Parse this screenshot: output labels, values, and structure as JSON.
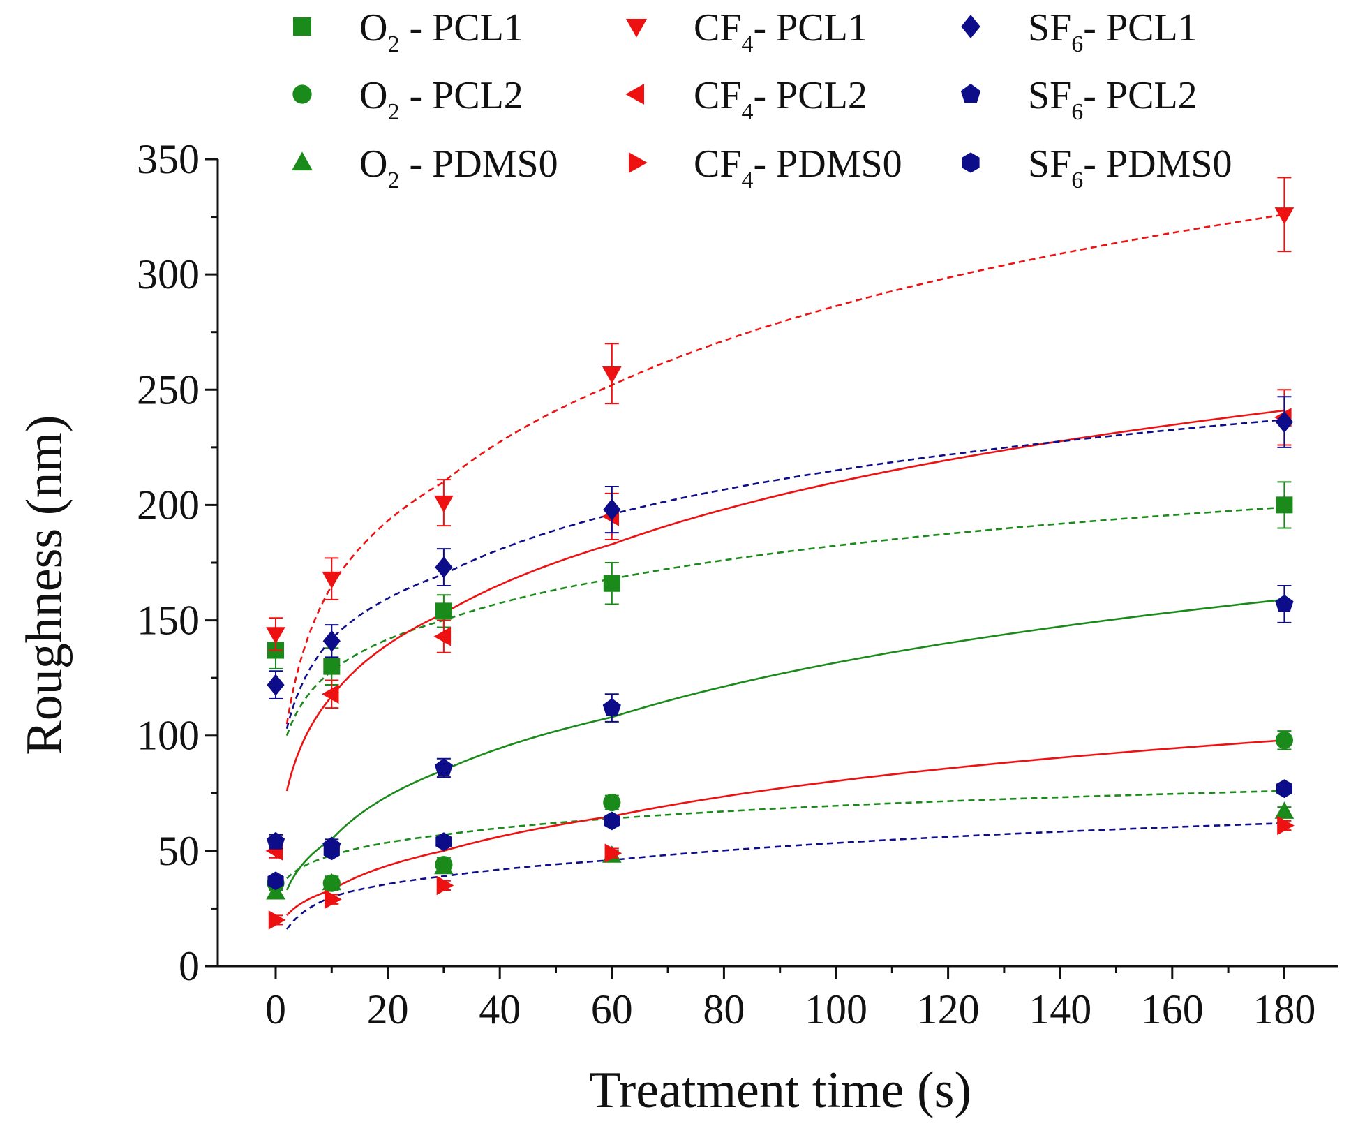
{
  "chart_data": {
    "type": "scatter",
    "title": "",
    "xlabel": "Treatment time (s)",
    "ylabel": "Roughness (nm)",
    "xlim": [
      -10,
      190
    ],
    "ylim": [
      0,
      350
    ],
    "xticks": [
      0,
      20,
      40,
      60,
      80,
      100,
      120,
      140,
      160,
      180
    ],
    "yticks": [
      0,
      50,
      100,
      150,
      200,
      250,
      300,
      350
    ],
    "legend_position": "top",
    "colors": {
      "O2": "#1a8a1a",
      "CF4": "#ee1111",
      "SF6": "#0d0d8a"
    },
    "series": [
      {
        "gas": "O",
        "sub": "2",
        "sample": "PCL1",
        "label": "O2 - PCL1",
        "color": "#1a8a1a",
        "marker": "square",
        "fit": "dashed",
        "x": [
          0,
          10,
          30,
          60,
          180
        ],
        "y": [
          137,
          130,
          154,
          166,
          200
        ],
        "err": [
          8,
          8,
          7,
          9,
          10
        ],
        "fit_curve": [
          100,
          128,
          150,
          168,
          199
        ]
      },
      {
        "gas": "O",
        "sub": "2",
        "sample": "PCL2",
        "label": "O2 - PCL2",
        "color": "#1a8a1a",
        "marker": "circle",
        "fit": "solid",
        "x": [
          0,
          10,
          30,
          60,
          180
        ],
        "y": [
          36,
          36,
          44,
          71,
          98
        ],
        "err": [
          3,
          3,
          3,
          3,
          4
        ],
        "fit_curve": [
          33,
          55,
          85,
          108,
          159
        ]
      },
      {
        "gas": "O",
        "sub": "2",
        "sample": "PDMS0",
        "label": "O2 - PDMS0",
        "color": "#1a8a1a",
        "marker": "triangle-up",
        "fit": "dashed",
        "x": [
          0,
          10,
          30,
          60,
          180
        ],
        "y": [
          32,
          36,
          43,
          48,
          67
        ],
        "err": [
          2,
          2,
          2,
          2,
          2
        ],
        "fit_curve": [
          38,
          48,
          57,
          64,
          76
        ]
      },
      {
        "gas": "CF",
        "sub": "4",
        "sample": "PCL1",
        "label": "CF4- PCL1",
        "color": "#ee1111",
        "marker": "triangle-down",
        "fit": "dashed",
        "x": [
          0,
          10,
          30,
          60,
          180
        ],
        "y": [
          144,
          168,
          201,
          257,
          326
        ],
        "err": [
          7,
          9,
          10,
          13,
          16
        ],
        "fit_curve": [
          105,
          165,
          210,
          252,
          326
        ]
      },
      {
        "gas": "CF",
        "sub": "4",
        "sample": "PCL2",
        "label": "CF4- PCL2",
        "color": "#ee1111",
        "marker": "triangle-left",
        "fit": "solid",
        "x": [
          0,
          10,
          30,
          60,
          180
        ],
        "y": [
          50,
          118,
          143,
          195,
          238
        ],
        "err": [
          3,
          6,
          7,
          10,
          12
        ],
        "fit_curve": [
          76,
          117,
          153,
          183,
          241
        ]
      },
      {
        "gas": "CF",
        "sub": "4",
        "sample": "PDMS0",
        "label": "CF4- PDMS0",
        "color": "#ee1111",
        "marker": "triangle-right",
        "fit": "solid",
        "x": [
          0,
          10,
          30,
          60,
          180
        ],
        "y": [
          20,
          29,
          35,
          49,
          61
        ],
        "err": [
          2,
          2,
          2,
          2,
          2
        ],
        "fit_curve": [
          22,
          33,
          50,
          65,
          98
        ]
      },
      {
        "gas": "SF",
        "sub": "6",
        "sample": "PCL1",
        "label": "SF6- PCL1",
        "color": "#0d0d8a",
        "marker": "diamond",
        "fit": "dashed",
        "x": [
          0,
          10,
          30,
          60,
          180
        ],
        "y": [
          122,
          141,
          173,
          198,
          236
        ],
        "err": [
          6,
          7,
          8,
          10,
          11
        ],
        "fit_curve": [
          103,
          142,
          170,
          196,
          237
        ]
      },
      {
        "gas": "SF",
        "sub": "6",
        "sample": "PCL2",
        "label": "SF6- PCL2",
        "color": "#0d0d8a",
        "marker": "pentagon",
        "fit": null,
        "x": [
          0,
          10,
          30,
          60,
          180
        ],
        "y": [
          54,
          52,
          86,
          112,
          157
        ],
        "err": [
          3,
          3,
          4,
          6,
          8
        ],
        "fit_curve": null
      },
      {
        "gas": "SF",
        "sub": "6",
        "sample": "PDMS0",
        "label": "SF6- PDMS0",
        "color": "#0d0d8a",
        "marker": "hexagon",
        "fit": "dashed",
        "x": [
          0,
          10,
          30,
          60,
          180
        ],
        "y": [
          37,
          50,
          54,
          63,
          77
        ],
        "err": [
          2,
          2,
          2,
          2,
          2
        ],
        "fit_curve": [
          16,
          30,
          39,
          46,
          62
        ]
      }
    ]
  }
}
